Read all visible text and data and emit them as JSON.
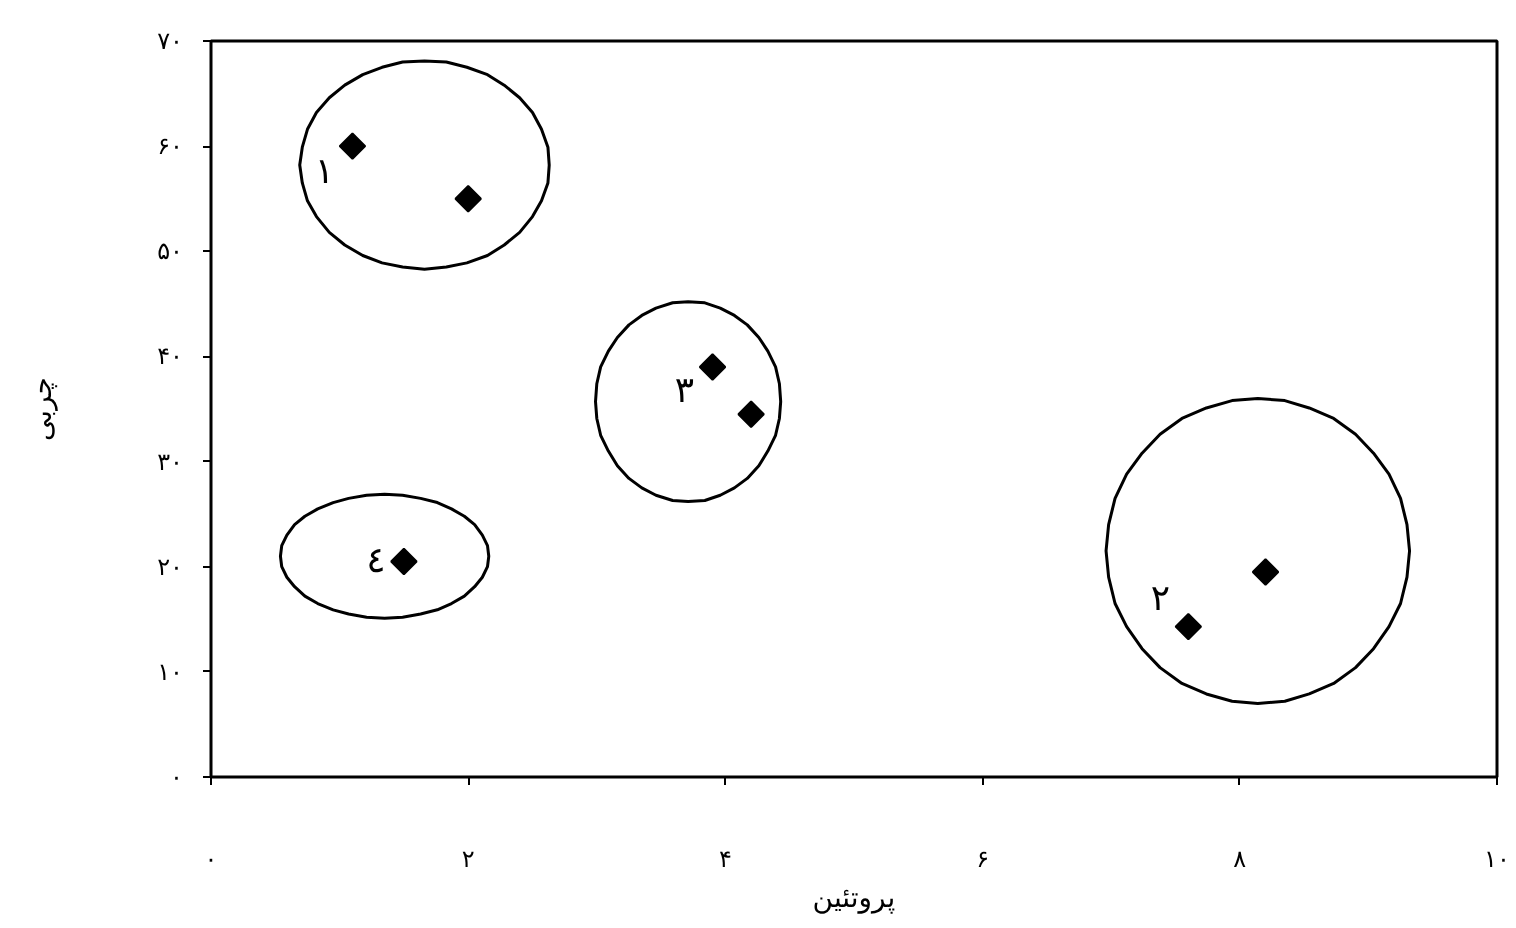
{
  "chart_data": {
    "type": "scatter",
    "xlabel": "پروتئین",
    "ylabel": "چربی",
    "xlim": [
      0,
      10
    ],
    "ylim": [
      0,
      70
    ],
    "xticks": [
      {
        "value": 0,
        "label": "۰"
      },
      {
        "value": 2,
        "label": "۲"
      },
      {
        "value": 4,
        "label": "۴"
      },
      {
        "value": 6,
        "label": "۶"
      },
      {
        "value": 8,
        "label": "۸"
      },
      {
        "value": 10,
        "label": "۱۰"
      }
    ],
    "yticks": [
      {
        "value": 0,
        "label": "۰"
      },
      {
        "value": 10,
        "label": "۱۰"
      },
      {
        "value": 20,
        "label": "۲۰"
      },
      {
        "value": 30,
        "label": "۳۰"
      },
      {
        "value": 40,
        "label": "۴۰"
      },
      {
        "value": 50,
        "label": "۵۰"
      },
      {
        "value": 60,
        "label": "۶۰"
      },
      {
        "value": 70,
        "label": "۷۰"
      }
    ],
    "marker": "diamond",
    "series": [
      {
        "type": "line",
        "color": "#000000",
        "marker": "none",
        "x": [
          2.63,
          2.62,
          2.57,
          2.5,
          2.4,
          2.28,
          2.15,
          1.99,
          1.83,
          1.66,
          1.49,
          1.33,
          1.18,
          1.04,
          0.92,
          0.82,
          0.75,
          0.71,
          0.69,
          0.71,
          0.75,
          0.82,
          0.92,
          1.04,
          1.18,
          1.33,
          1.49,
          1.66,
          1.83,
          1.99,
          2.15,
          2.28,
          2.4,
          2.5,
          2.57,
          2.62,
          2.63,
          2.62,
          2.57,
          2.5,
          2.4
        ],
        "values": [
          58.2,
          59.9,
          61.6,
          63.2,
          64.6,
          65.8,
          66.8,
          67.5,
          68.0,
          68.1,
          68.0,
          67.5,
          66.8,
          65.8,
          64.6,
          63.2,
          61.6,
          59.9,
          58.2,
          56.5,
          54.8,
          53.3,
          51.8,
          50.6,
          49.6,
          48.9,
          48.5,
          48.3,
          48.5,
          48.9,
          49.6,
          50.6,
          51.8,
          53.3,
          54.8,
          56.5,
          58.2,
          59.9,
          61.6,
          63.2,
          64.6
        ]
      },
      {
        "type": "line",
        "color": "#000000",
        "marker": "none",
        "x": [
          9.32,
          9.3,
          9.25,
          9.16,
          9.04,
          8.9,
          8.73,
          8.54,
          8.35,
          8.14,
          7.94,
          7.74,
          7.55,
          7.38,
          7.24,
          7.12,
          7.03,
          6.98,
          6.96,
          6.98,
          7.03,
          7.12,
          7.24,
          7.38,
          7.55,
          7.74,
          7.94,
          8.14,
          8.35,
          8.54,
          8.73,
          8.9,
          9.04,
          9.16,
          9.25,
          9.3,
          9.32,
          9.3,
          9.25,
          9.16,
          9.04
        ],
        "values": [
          21.5,
          24.0,
          26.5,
          28.8,
          30.8,
          32.6,
          34.1,
          35.1,
          35.8,
          36.0,
          35.8,
          35.1,
          34.1,
          32.6,
          30.8,
          28.8,
          26.5,
          24.0,
          21.5,
          19.0,
          16.5,
          14.3,
          12.2,
          10.4,
          8.9,
          7.9,
          7.2,
          7.0,
          7.2,
          7.9,
          8.9,
          10.4,
          12.2,
          14.3,
          16.5,
          19.0,
          21.5,
          24.0,
          26.5,
          28.8,
          30.8
        ]
      },
      {
        "type": "line",
        "color": "#000000",
        "marker": "none",
        "x": [
          4.43,
          4.42,
          4.39,
          4.33,
          4.26,
          4.17,
          4.07,
          3.96,
          3.84,
          3.71,
          3.59,
          3.46,
          3.35,
          3.25,
          3.16,
          3.09,
          3.03,
          3.0,
          2.99,
          3.0,
          3.03,
          3.09,
          3.16,
          3.25,
          3.35,
          3.46,
          3.59,
          3.71,
          3.84,
          3.96,
          4.07,
          4.17,
          4.26,
          4.33,
          4.39,
          4.42,
          4.43,
          4.42,
          4.39,
          4.33,
          4.26
        ],
        "values": [
          35.7,
          37.4,
          39.0,
          40.5,
          41.8,
          43.0,
          43.9,
          44.6,
          45.1,
          45.2,
          45.1,
          44.6,
          43.9,
          43.0,
          41.8,
          40.5,
          39.0,
          37.4,
          35.7,
          34.1,
          32.5,
          31.0,
          29.6,
          28.4,
          27.5,
          26.8,
          26.3,
          26.2,
          26.3,
          26.8,
          27.5,
          28.4,
          29.6,
          31.0,
          32.5,
          34.1,
          35.7,
          37.4,
          39.0,
          40.5,
          41.8
        ]
      },
      {
        "type": "line",
        "color": "#000000",
        "marker": "none",
        "x": [
          2.16,
          2.15,
          2.11,
          2.05,
          1.97,
          1.87,
          1.76,
          1.63,
          1.49,
          1.35,
          1.21,
          1.07,
          0.95,
          0.83,
          0.73,
          0.65,
          0.59,
          0.55,
          0.54,
          0.55,
          0.59,
          0.65,
          0.73,
          0.83,
          0.95,
          1.07,
          1.21,
          1.35,
          1.49,
          1.63,
          1.76,
          1.87,
          1.97,
          2.05,
          2.11,
          2.15,
          2.16,
          2.15,
          2.11,
          2.05,
          1.97
        ],
        "values": [
          21.0,
          22.0,
          23.0,
          24.0,
          24.8,
          25.5,
          26.1,
          26.5,
          26.8,
          26.9,
          26.8,
          26.5,
          26.1,
          25.5,
          24.8,
          24.0,
          23.0,
          22.0,
          21.0,
          20.0,
          19.0,
          18.1,
          17.2,
          16.5,
          15.9,
          15.5,
          15.2,
          15.1,
          15.2,
          15.5,
          15.9,
          16.5,
          17.2,
          18.1,
          19.0,
          20.0,
          21.0,
          22.0,
          23.0,
          24.0,
          24.8
        ]
      },
      {
        "name": "۱",
        "color": "#000000",
        "x": [
          1.1,
          2.0
        ],
        "values": [
          60,
          55
        ]
      },
      {
        "name": "۲",
        "color": "#000000",
        "x": [
          8.2,
          7.6
        ],
        "values": [
          19.5,
          14.3
        ]
      },
      {
        "name": "۳",
        "color": "#000000",
        "x": [
          3.9,
          4.2
        ],
        "values": [
          39,
          34.5
        ]
      },
      {
        "name": "٤",
        "color": "#000000",
        "x": [
          1.5
        ],
        "values": [
          20.5
        ]
      }
    ]
  }
}
